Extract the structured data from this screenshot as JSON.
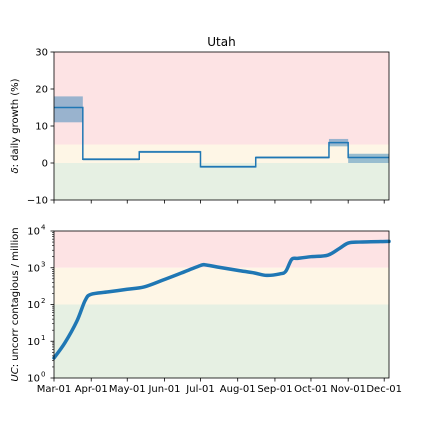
{
  "chart_data": [
    {
      "type": "line",
      "title": "Utah",
      "ylabel": "δ: daily growth (%)",
      "ylabel_symbol": "δ",
      "ylabel_rest": ": daily growth (%)",
      "xlabel": "",
      "ylim": [
        -10,
        30
      ],
      "yticks": [
        -10,
        0,
        10,
        20,
        30
      ],
      "ytick_labels": [
        "−10",
        "0",
        "10",
        "20",
        "30"
      ],
      "xlim": [
        "2020-03-01",
        "2020-12-05"
      ],
      "zones": [
        {
          "name": "red",
          "from": 5,
          "to": 30,
          "color": "#fde3e4"
        },
        {
          "name": "yellow",
          "from": 0,
          "to": 5,
          "color": "#fef6e6"
        },
        {
          "name": "green",
          "from": -10,
          "to": 0,
          "color": "#e6f0e3"
        }
      ],
      "series": [
        {
          "step_segments": [
            {
              "start": "2020-03-01",
              "end": "2020-03-25",
              "value": 15.0,
              "low": 11.0,
              "high": 18.0
            },
            {
              "start": "2020-03-25",
              "end": "2020-05-11",
              "value": 1.0,
              "low": 0.7,
              "high": 1.3
            },
            {
              "start": "2020-05-11",
              "end": "2020-07-01",
              "value": 3.0,
              "low": 2.7,
              "high": 3.3
            },
            {
              "start": "2020-07-01",
              "end": "2020-08-16",
              "value": -1.0,
              "low": -1.3,
              "high": -0.7
            },
            {
              "start": "2020-08-16",
              "end": "2020-10-16",
              "value": 1.5,
              "low": 1.2,
              "high": 1.8
            },
            {
              "start": "2020-10-16",
              "end": "2020-11-01",
              "value": 5.5,
              "low": 4.5,
              "high": 6.5
            },
            {
              "start": "2020-11-01",
              "end": "2020-12-05",
              "value": 1.5,
              "low": 0.0,
              "high": 2.5
            }
          ],
          "color": "#1f77b4",
          "band_color": "#1f77b4"
        }
      ]
    },
    {
      "type": "line",
      "title": "",
      "ylabel": "UC: uncorr contagious / million",
      "ylabel_symbol": "UC",
      "ylabel_rest": ": uncorr contagious / million",
      "xlabel": "",
      "y_scale": "log",
      "ylim": [
        1,
        10000
      ],
      "yticks": [
        1,
        10,
        100,
        1000,
        10000
      ],
      "ytick_labels": [
        {
          "base": "10",
          "exp": "0"
        },
        {
          "base": "10",
          "exp": "1"
        },
        {
          "base": "10",
          "exp": "2"
        },
        {
          "base": "10",
          "exp": "3"
        },
        {
          "base": "10",
          "exp": "4"
        }
      ],
      "xlim": [
        "2020-03-01",
        "2020-12-05"
      ],
      "xticks": [
        "2020-03-01",
        "2020-04-01",
        "2020-05-01",
        "2020-06-01",
        "2020-07-01",
        "2020-08-01",
        "2020-09-01",
        "2020-10-01",
        "2020-11-01",
        "2020-12-01"
      ],
      "xtick_labels": [
        "Mar-01",
        "Apr-01",
        "May-01",
        "Jun-01",
        "Jul-01",
        "Aug-01",
        "Sep-01",
        "Oct-01",
        "Nov-01",
        "Dec-01"
      ],
      "zones": [
        {
          "name": "red",
          "from": 1000,
          "to": 10000,
          "color": "#fde3e4"
        },
        {
          "name": "yellow",
          "from": 100,
          "to": 1000,
          "color": "#fef6e6"
        },
        {
          "name": "green",
          "from": 1,
          "to": 100,
          "color": "#e6f0e3"
        }
      ],
      "series": [
        {
          "x": [
            "2020-03-01",
            "2020-03-10",
            "2020-03-20",
            "2020-03-27",
            "2020-04-01",
            "2020-04-15",
            "2020-05-01",
            "2020-05-15",
            "2020-06-01",
            "2020-06-15",
            "2020-07-01",
            "2020-07-05",
            "2020-07-15",
            "2020-08-01",
            "2020-08-15",
            "2020-08-25",
            "2020-09-05",
            "2020-09-10",
            "2020-09-15",
            "2020-09-20",
            "2020-10-01",
            "2020-10-15",
            "2020-10-25",
            "2020-11-01",
            "2020-11-10",
            "2020-11-20",
            "2020-12-05"
          ],
          "y": [
            3.5,
            9,
            35,
            130,
            190,
            220,
            260,
            300,
            480,
            720,
            1150,
            1200,
            1050,
            850,
            720,
            620,
            680,
            800,
            1700,
            1800,
            2000,
            2200,
            3400,
            4700,
            5000,
            5100,
            5200
          ],
          "color": "#1f77b4"
        }
      ]
    }
  ]
}
